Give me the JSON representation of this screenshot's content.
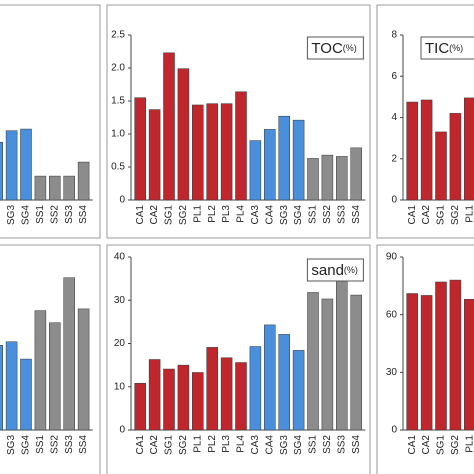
{
  "chart_data": [
    {
      "type": "bar",
      "categories": [
        null,
        "SG3",
        "SG4",
        "SS1",
        "SS2",
        "SS3",
        "SS4"
      ],
      "values": [
        0.35,
        0.42,
        0.43,
        0.145,
        0.145,
        0.145,
        0.23
      ],
      "colors": [
        "#4a8fdc",
        "#4a8fdc",
        "#4a8fdc",
        "#8c8c8c",
        "#8c8c8c",
        "#8c8c8c",
        "#8c8c8c"
      ],
      "ylim": [
        0,
        1
      ]
    },
    {
      "type": "bar",
      "title": "TOC",
      "unit": "(%)",
      "categories": [
        "CA1",
        "CA2",
        "SG1",
        "SG2",
        "PL1",
        "PL2",
        "PL3",
        "PL4",
        "CA3",
        "CA4",
        "SG3",
        "SG4",
        "SS1",
        "SS2",
        "SS3",
        "SS4"
      ],
      "values": [
        1.55,
        1.37,
        2.23,
        1.99,
        1.44,
        1.46,
        1.46,
        1.64,
        0.9,
        1.07,
        1.27,
        1.21,
        0.63,
        0.68,
        0.66,
        0.79
      ],
      "colors": [
        "#c0272d",
        "#c0272d",
        "#c0272d",
        "#c0272d",
        "#c0272d",
        "#c0272d",
        "#c0272d",
        "#c0272d",
        "#4a8fdc",
        "#4a8fdc",
        "#4a8fdc",
        "#4a8fdc",
        "#8c8c8c",
        "#8c8c8c",
        "#8c8c8c",
        "#8c8c8c"
      ],
      "ylim": [
        0,
        2.5
      ],
      "yticks": [
        0,
        0.5,
        {
          "value": 1,
          "label": "1.0"
        },
        1.5,
        {
          "value": 2,
          "label": "2.0"
        },
        2.5
      ]
    },
    {
      "type": "bar",
      "title": "TIC",
      "unit": "(%)",
      "categories": [
        "CA1",
        "CA2",
        "SG1",
        "SG2",
        "PL1"
      ],
      "values": [
        4.75,
        4.85,
        3.3,
        4.2,
        4.95
      ],
      "colors": [
        "#c0272d",
        "#c0272d",
        "#c0272d",
        "#c0272d",
        "#c0272d"
      ],
      "ylim": [
        0,
        8
      ],
      "yticks": [
        0,
        2,
        4,
        6,
        8
      ]
    },
    {
      "type": "bar",
      "categories": [
        null,
        "SG3",
        "SG4",
        "SS1",
        "SS2",
        "SS3",
        "SS4"
      ],
      "values": [
        0.49,
        0.51,
        0.41,
        0.69,
        0.62,
        0.88,
        0.7
      ],
      "colors": [
        "#4a8fdc",
        "#4a8fdc",
        "#4a8fdc",
        "#8c8c8c",
        "#8c8c8c",
        "#8c8c8c",
        "#8c8c8c"
      ],
      "ylim": [
        0,
        1
      ]
    },
    {
      "type": "bar",
      "title": "sand",
      "unit": "(%)",
      "categories": [
        "CA1",
        "CA2",
        "SG1",
        "SG2",
        "PL1",
        "PL2",
        "PL3",
        "PL4",
        "CA3",
        "CA4",
        "SG3",
        "SG4",
        "SS1",
        "SS2",
        "SS3",
        "SS4"
      ],
      "values": [
        10.8,
        16.3,
        14.1,
        15,
        13.3,
        19.1,
        16.7,
        15.6,
        19.3,
        24.3,
        22.1,
        18.4,
        31.8,
        30.3,
        36.5,
        31.2
      ],
      "colors": [
        "#c0272d",
        "#c0272d",
        "#c0272d",
        "#c0272d",
        "#c0272d",
        "#c0272d",
        "#c0272d",
        "#c0272d",
        "#4a8fdc",
        "#4a8fdc",
        "#4a8fdc",
        "#4a8fdc",
        "#8c8c8c",
        "#8c8c8c",
        "#8c8c8c",
        "#8c8c8c"
      ],
      "ylim": [
        0,
        40
      ],
      "yticks": [
        0,
        10,
        20,
        30,
        40
      ]
    },
    {
      "type": "bar",
      "categories": [
        "CA1",
        "CA2",
        "SG1",
        "SG2",
        "PL1"
      ],
      "values": [
        71,
        70,
        77,
        78,
        68
      ],
      "colors": [
        "#c0272d",
        "#c0272d",
        "#c0272d",
        "#c0272d",
        "#c0272d"
      ],
      "ylim": [
        0,
        90
      ],
      "yticks": [
        0,
        30,
        60,
        90
      ]
    }
  ]
}
